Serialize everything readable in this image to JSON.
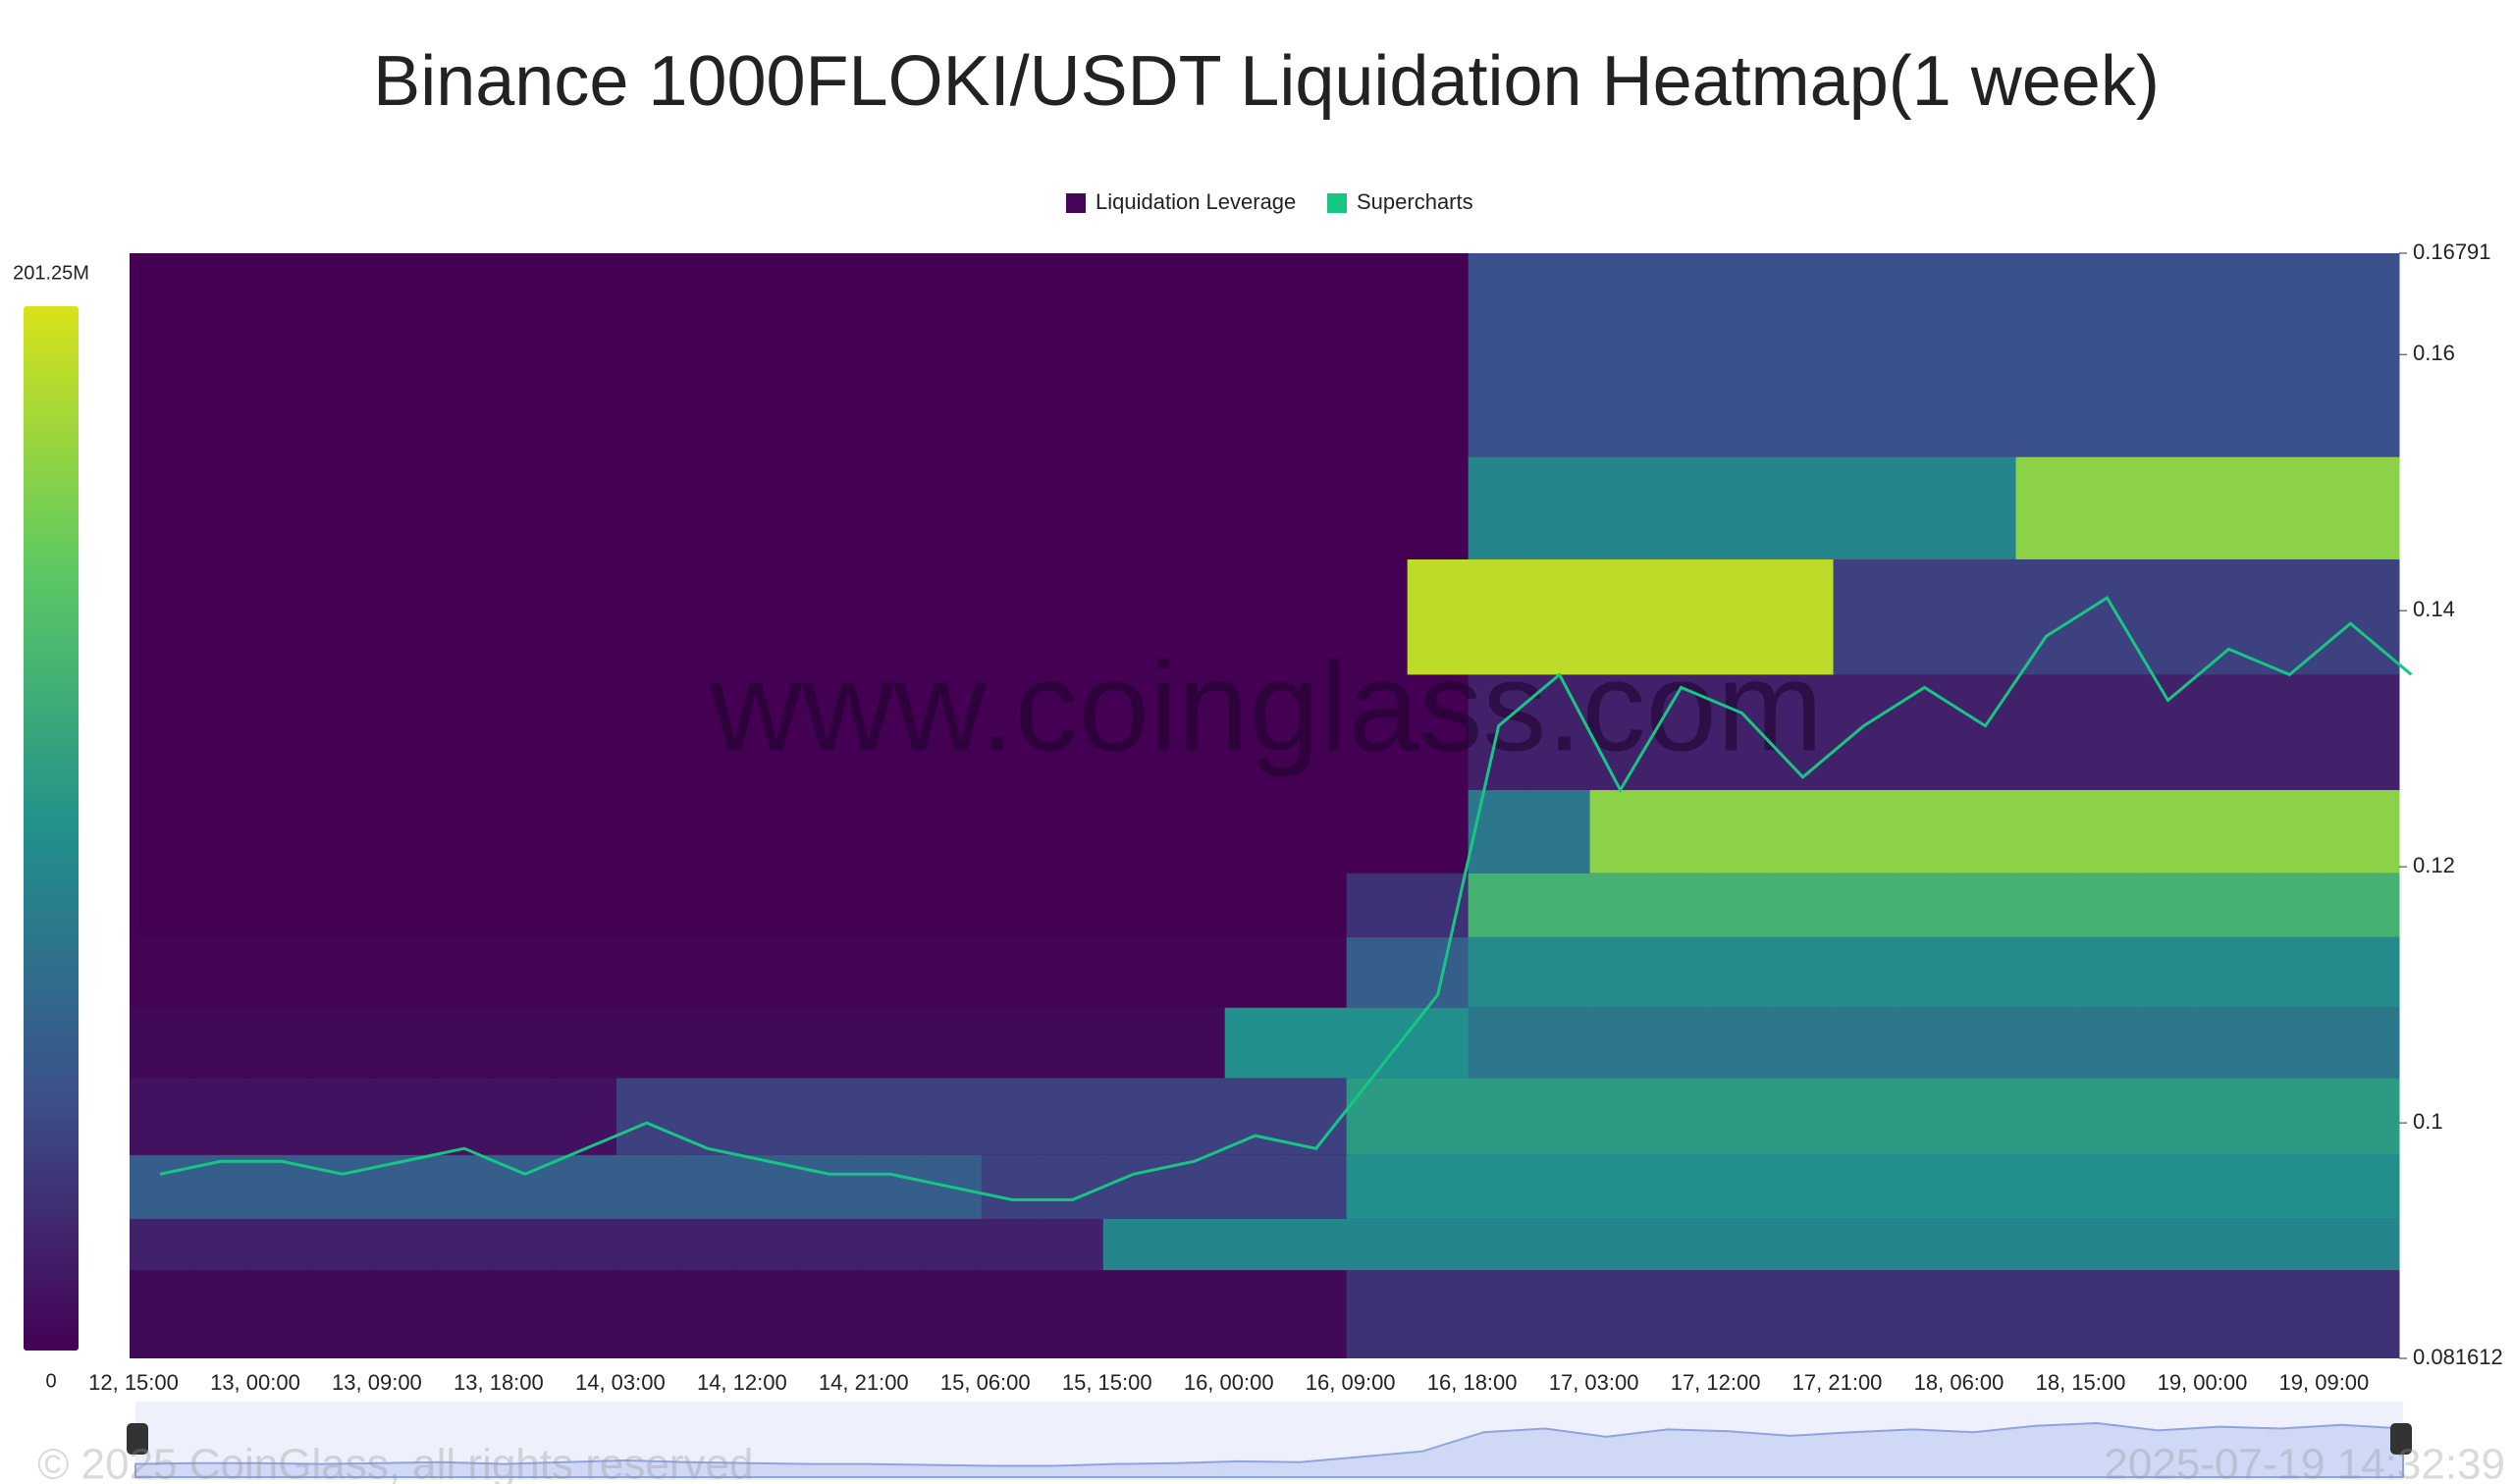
{
  "chart_data": {
    "type": "heatmap",
    "title": "Binance 1000FLOKI/USDT Liquidation Heatmap(1 week)",
    "watermark": "www.coinglass.com",
    "footer_left": "© 2025 CoinGlass, all rights reserved",
    "footer_right": "2025-07-19 14:32:39",
    "categories": [
      "12, 15:00",
      null,
      "13, 00:00",
      null,
      "13, 09:00",
      null,
      "13, 18:00",
      null,
      "14, 03:00",
      null,
      "14, 12:00",
      null,
      "14, 21:00",
      null,
      "15, 06:00",
      null,
      "15, 15:00",
      null,
      "16, 00:00",
      null,
      "16, 09:00",
      null,
      "16, 18:00",
      null,
      "17, 03:00",
      null,
      "17, 12:00",
      null,
      "17, 21:00",
      null,
      "18, 06:00",
      null,
      "18, 15:00",
      null,
      "19, 00:00",
      null,
      "19, 09:00",
      null
    ],
    "ylim": [
      0.081612,
      0.16791
    ],
    "yticks": [
      0.081612,
      0.1,
      0.12,
      0.14,
      0.16,
      0.16791
    ],
    "colorlim": [
      0,
      201.25
    ],
    "colorticks": [
      0,
      {
        "value": 201.25,
        "label": "201.25M"
      }
    ],
    "heatmap": {
      "name": "Liquidation Leverage",
      "color": "#45065a",
      "y": [
        0.086,
        0.091,
        0.094,
        0.101,
        0.106,
        0.112,
        0.117,
        0.122,
        0.13,
        0.14,
        0.148,
        0.156
      ],
      "z": [
        [
          5,
          5,
          5,
          5,
          5,
          5,
          5,
          5,
          5,
          5,
          5,
          5,
          5,
          5,
          5,
          5,
          5,
          5,
          5,
          5,
          30,
          30,
          30,
          30,
          30,
          30,
          30,
          30,
          30,
          30,
          30,
          30,
          30,
          30,
          30,
          30,
          30,
          30
        ],
        [
          20,
          20,
          20,
          20,
          20,
          20,
          20,
          20,
          20,
          20,
          20,
          20,
          20,
          20,
          20,
          20,
          90,
          90,
          90,
          90,
          90,
          90,
          90,
          90,
          90,
          90,
          90,
          90,
          90,
          90,
          90,
          90,
          90,
          90,
          90,
          90,
          90,
          90
        ],
        [
          60,
          60,
          60,
          60,
          60,
          60,
          60,
          60,
          60,
          60,
          60,
          60,
          60,
          60,
          40,
          40,
          40,
          40,
          40,
          40,
          100,
          100,
          100,
          100,
          100,
          100,
          100,
          100,
          100,
          100,
          100,
          100,
          100,
          100,
          100,
          100,
          100,
          100
        ],
        [
          10,
          10,
          10,
          10,
          10,
          10,
          10,
          10,
          40,
          40,
          40,
          40,
          40,
          40,
          40,
          40,
          40,
          40,
          40,
          40,
          110,
          110,
          110,
          110,
          110,
          110,
          110,
          110,
          110,
          110,
          110,
          110,
          110,
          110,
          110,
          110,
          110,
          110
        ],
        [
          5,
          5,
          5,
          5,
          5,
          5,
          5,
          5,
          5,
          5,
          5,
          5,
          5,
          5,
          5,
          5,
          5,
          5,
          100,
          100,
          100,
          100,
          80,
          80,
          80,
          80,
          80,
          80,
          80,
          80,
          80,
          80,
          80,
          80,
          80,
          80,
          80,
          80
        ],
        [
          2,
          2,
          2,
          2,
          2,
          2,
          2,
          2,
          2,
          2,
          2,
          2,
          2,
          2,
          2,
          2,
          2,
          2,
          2,
          2,
          60,
          60,
          95,
          95,
          95,
          95,
          95,
          95,
          95,
          95,
          95,
          95,
          95,
          95,
          95,
          95,
          95,
          95
        ],
        [
          0,
          0,
          0,
          0,
          0,
          0,
          0,
          0,
          0,
          0,
          0,
          0,
          0,
          0,
          0,
          0,
          0,
          0,
          0,
          0,
          30,
          30,
          130,
          130,
          130,
          130,
          130,
          130,
          130,
          130,
          130,
          130,
          130,
          130,
          130,
          130,
          130,
          130
        ],
        [
          0,
          0,
          0,
          0,
          0,
          0,
          0,
          0,
          0,
          0,
          0,
          0,
          0,
          0,
          0,
          0,
          0,
          0,
          0,
          0,
          0,
          0,
          80,
          80,
          170,
          170,
          170,
          170,
          170,
          170,
          170,
          170,
          170,
          170,
          170,
          170,
          170,
          170
        ],
        [
          0,
          0,
          0,
          0,
          0,
          0,
          0,
          0,
          0,
          0,
          0,
          0,
          0,
          0,
          0,
          0,
          0,
          0,
          0,
          0,
          0,
          0,
          20,
          20,
          20,
          20,
          20,
          20,
          20,
          20,
          20,
          20,
          20,
          20,
          20,
          20,
          20,
          20
        ],
        [
          0,
          0,
          0,
          0,
          0,
          0,
          0,
          0,
          0,
          0,
          0,
          0,
          0,
          0,
          0,
          0,
          0,
          0,
          0,
          0,
          0,
          190,
          190,
          190,
          190,
          190,
          190,
          190,
          40,
          40,
          40,
          40,
          40,
          40,
          40,
          40,
          40,
          40
        ],
        [
          0,
          0,
          0,
          0,
          0,
          0,
          0,
          0,
          0,
          0,
          0,
          0,
          0,
          0,
          0,
          0,
          0,
          0,
          0,
          0,
          0,
          0,
          90,
          90,
          90,
          90,
          90,
          90,
          90,
          90,
          90,
          170,
          170,
          170,
          170,
          170,
          170,
          170
        ],
        [
          0,
          0,
          0,
          0,
          0,
          0,
          0,
          0,
          0,
          0,
          0,
          0,
          0,
          0,
          0,
          0,
          0,
          0,
          0,
          0,
          0,
          0,
          50,
          50,
          50,
          50,
          50,
          50,
          50,
          50,
          50,
          50,
          50,
          50,
          50,
          50,
          50,
          50
        ]
      ]
    },
    "series": [
      {
        "name": "Supercharts",
        "color": "#16c784",
        "values": [
          0.096,
          0.097,
          0.097,
          0.096,
          0.097,
          0.098,
          0.096,
          0.098,
          0.1,
          0.098,
          0.097,
          0.096,
          0.096,
          0.095,
          0.094,
          0.094,
          0.096,
          0.097,
          0.099,
          0.098,
          0.104,
          0.11,
          0.131,
          0.135,
          0.126,
          0.134,
          0.132,
          0.127,
          0.131,
          0.134,
          0.131,
          0.138,
          0.141,
          0.133,
          0.137,
          0.135,
          0.139,
          0.135
        ]
      }
    ]
  }
}
